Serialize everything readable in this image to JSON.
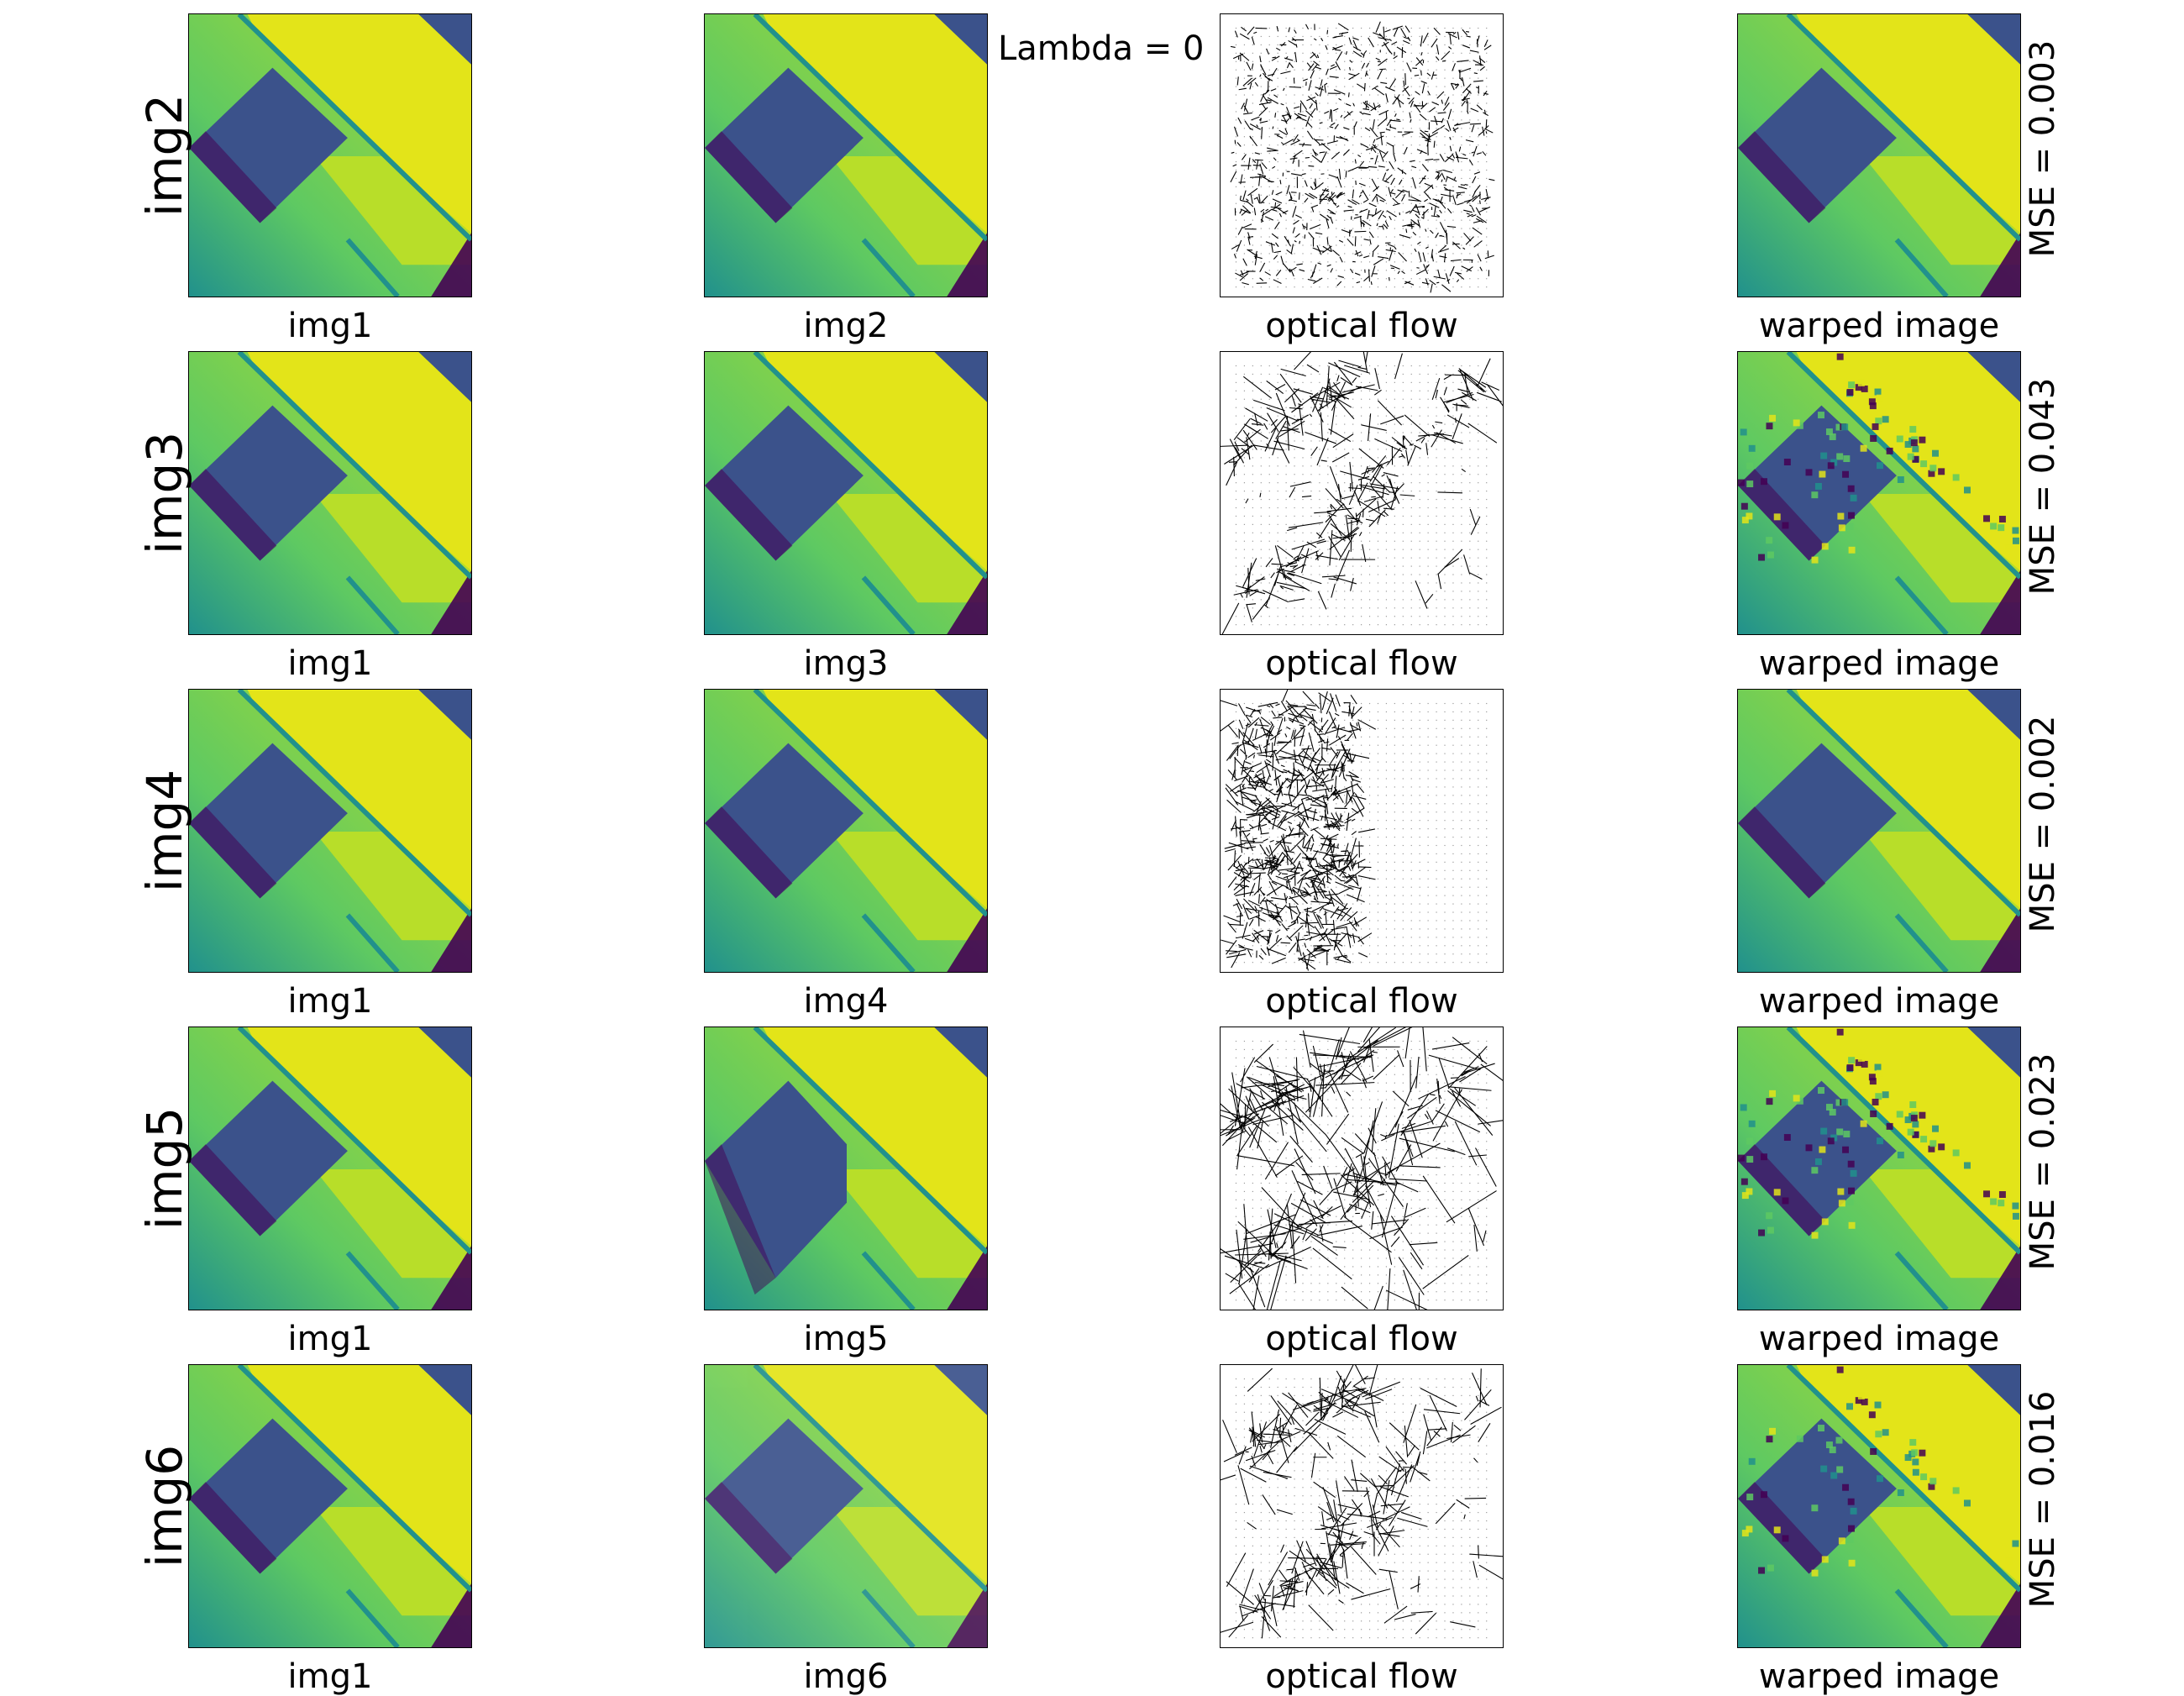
{
  "figure": {
    "lambda_label": "Lambda = 0",
    "column_labels": {
      "reference": "img1",
      "flow": "optical flow",
      "warped": "warped image"
    },
    "rows": [
      {
        "row_label": "img2",
        "target_label": "img2",
        "mse_label": "MSE = 0.003",
        "target_variant": "plain",
        "warp_variant": "clean",
        "flow_pattern": "dense"
      },
      {
        "row_label": "img3",
        "target_label": "img3",
        "mse_label": "MSE = 0.043",
        "target_variant": "plain",
        "warp_variant": "noisy",
        "flow_pattern": "edges"
      },
      {
        "row_label": "img4",
        "target_label": "img4",
        "mse_label": "MSE = 0.002",
        "target_variant": "plain",
        "warp_variant": "clean",
        "flow_pattern": "left-half"
      },
      {
        "row_label": "img5",
        "target_label": "img5",
        "mse_label": "MSE = 0.023",
        "target_variant": "notched",
        "warp_variant": "noisy",
        "flow_pattern": "edges-strong"
      },
      {
        "row_label": "img6",
        "target_label": "img6",
        "mse_label": "MSE = 0.016",
        "target_variant": "blurred",
        "warp_variant": "pixelated",
        "flow_pattern": "edges-light"
      }
    ],
    "colors": {
      "viridis_yellow": "#e3e419",
      "viridis_green": "#5ec962",
      "viridis_teal": "#21918c",
      "viridis_blue": "#3b528b",
      "viridis_purple": "#440154",
      "arrow_color": "#000000"
    }
  }
}
